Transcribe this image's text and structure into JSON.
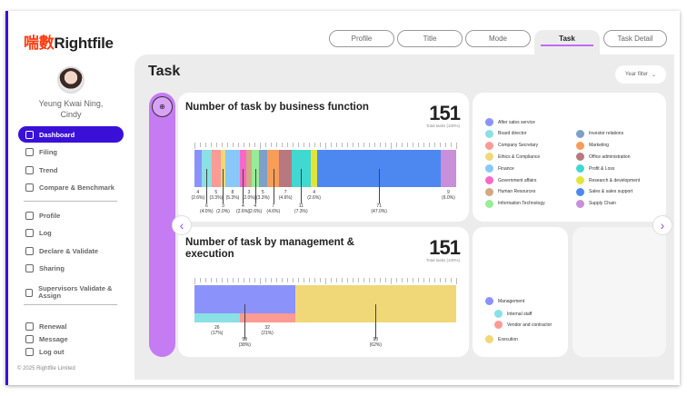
{
  "brand": {
    "cn": "喘數",
    "en": "Rightfile"
  },
  "user": {
    "name_line1": "Yeung Kwai Ning,",
    "name_line2": "Cindy"
  },
  "nav": [
    {
      "label": "Dashboard",
      "icon": "dashboard-icon",
      "active": true
    },
    {
      "label": "Filing",
      "icon": "filing-icon"
    },
    {
      "label": "Trend",
      "icon": "trend-icon"
    },
    {
      "label": "Compare & Benchmark",
      "icon": "compare-icon"
    },
    {
      "label": "Profile",
      "icon": "profile-icon"
    },
    {
      "label": "Log",
      "icon": "log-icon"
    },
    {
      "label": "Declare & Validate",
      "icon": "declare-icon"
    },
    {
      "label": "Sharing",
      "icon": "sharing-icon"
    },
    {
      "label": "Supervisors Validate & Assign",
      "icon": "supervisor-icon"
    },
    {
      "label": "Renewal",
      "icon": "renewal-icon"
    },
    {
      "label": "Message",
      "icon": "message-icon"
    },
    {
      "label": "Log out",
      "icon": "logout-icon"
    }
  ],
  "footer": "© 2025  Rightfile Limited",
  "tabs": [
    "Profile",
    "Title",
    "Mode",
    "Task",
    "Task Detail"
  ],
  "active_tab": "Task",
  "page_title": "Task",
  "year_filter": "Year filter",
  "accent": "#3a10d8",
  "chart_data": [
    {
      "type": "bar",
      "orientation": "stacked-horizontal",
      "title": "Number of task by business function",
      "total": "151",
      "total_label": "Total tasks (100%)",
      "categories": [
        "After sales service",
        "Board director",
        "Company Secretary",
        "Ethics & Compliance",
        "Finance",
        "Government affairs",
        "Human Resources",
        "Information Technology",
        "Investor relations",
        "Marketing",
        "Office administration",
        "Profit & Loss",
        "Research & development",
        "Sales & sales support",
        "Supply Chain"
      ],
      "values": [
        4,
        6,
        5,
        3,
        8,
        4,
        3,
        4,
        5,
        7,
        7,
        11,
        4,
        71,
        9
      ],
      "percents": [
        "2.6%",
        "4.0%",
        "3.3%",
        "2.0%",
        "5.3%",
        "2.6%",
        "2.0%",
        "2.6%",
        "3.3%",
        "4.6%",
        "4.6%",
        "7.3%",
        "2.6%",
        "47.0%",
        "6.0%"
      ],
      "colors": [
        "#8b93fb",
        "#8ae0e4",
        "#fc9a94",
        "#f0d878",
        "#88c8f8",
        "#f868c8",
        "#d4a880",
        "#98ec98",
        "#7ca0c8",
        "#f89c58",
        "#b87880",
        "#40d8d0",
        "#e4e438",
        "#4c88f0",
        "#c890d8"
      ]
    },
    {
      "type": "bar",
      "orientation": "stacked-horizontal",
      "title": "Number of task by management & execution",
      "total": "151",
      "total_label": "Total tasks (100%)",
      "categories": [
        "Management",
        "Internal staff",
        "Vendor and contractor",
        "Execution"
      ],
      "values": [
        58,
        26,
        32,
        93
      ],
      "percents": [
        "38%",
        "17%",
        "21%",
        "62%"
      ],
      "colors": [
        "#8b93fb",
        "#8ae0e4",
        "#fc9a94",
        "#f0d878"
      ]
    }
  ]
}
